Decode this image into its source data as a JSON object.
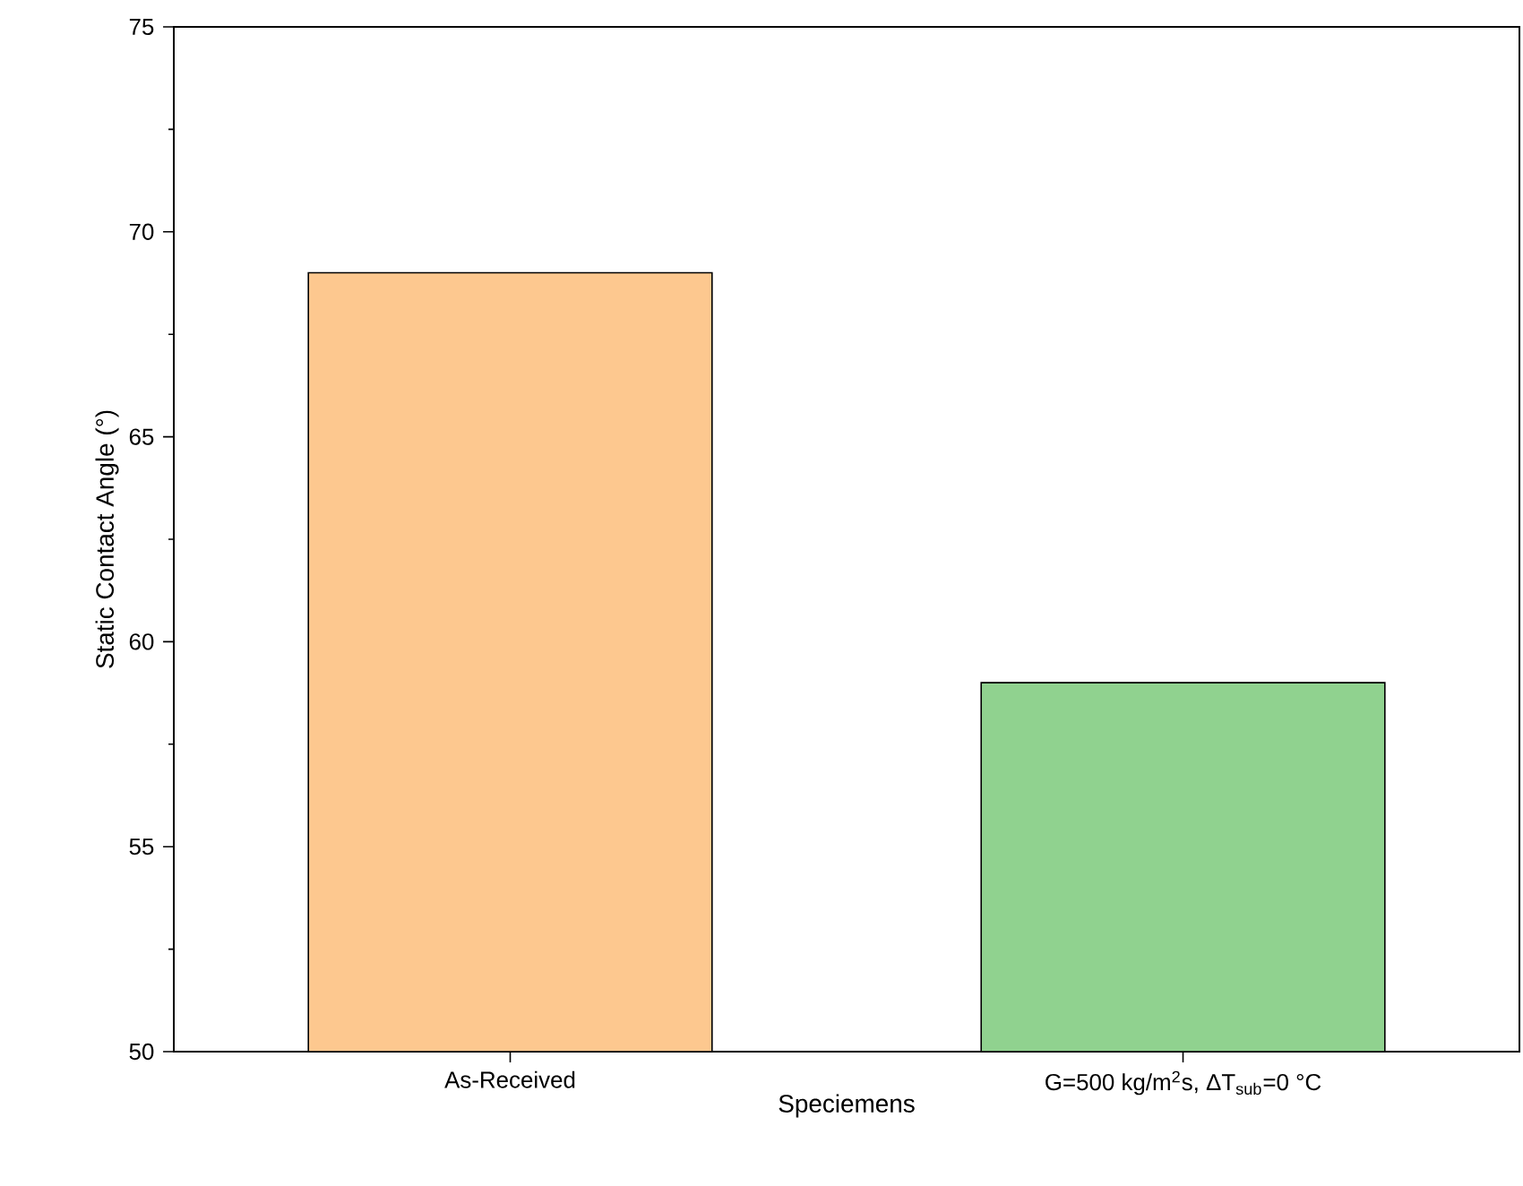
{
  "chart_data": {
    "type": "bar",
    "xlabel": "Speciemens",
    "ylabel": "Static Contact Angle (°)",
    "categories": [
      "As-Received",
      "G=500 kg/m$^{2}$s, ΔT$_{sub}$=0 °C"
    ],
    "values": [
      69,
      59
    ],
    "colors": [
      "#fdc88f",
      "#90d28f"
    ],
    "ylim": [
      50,
      75
    ],
    "yticks": [
      50,
      55,
      60,
      65,
      70,
      75
    ]
  }
}
